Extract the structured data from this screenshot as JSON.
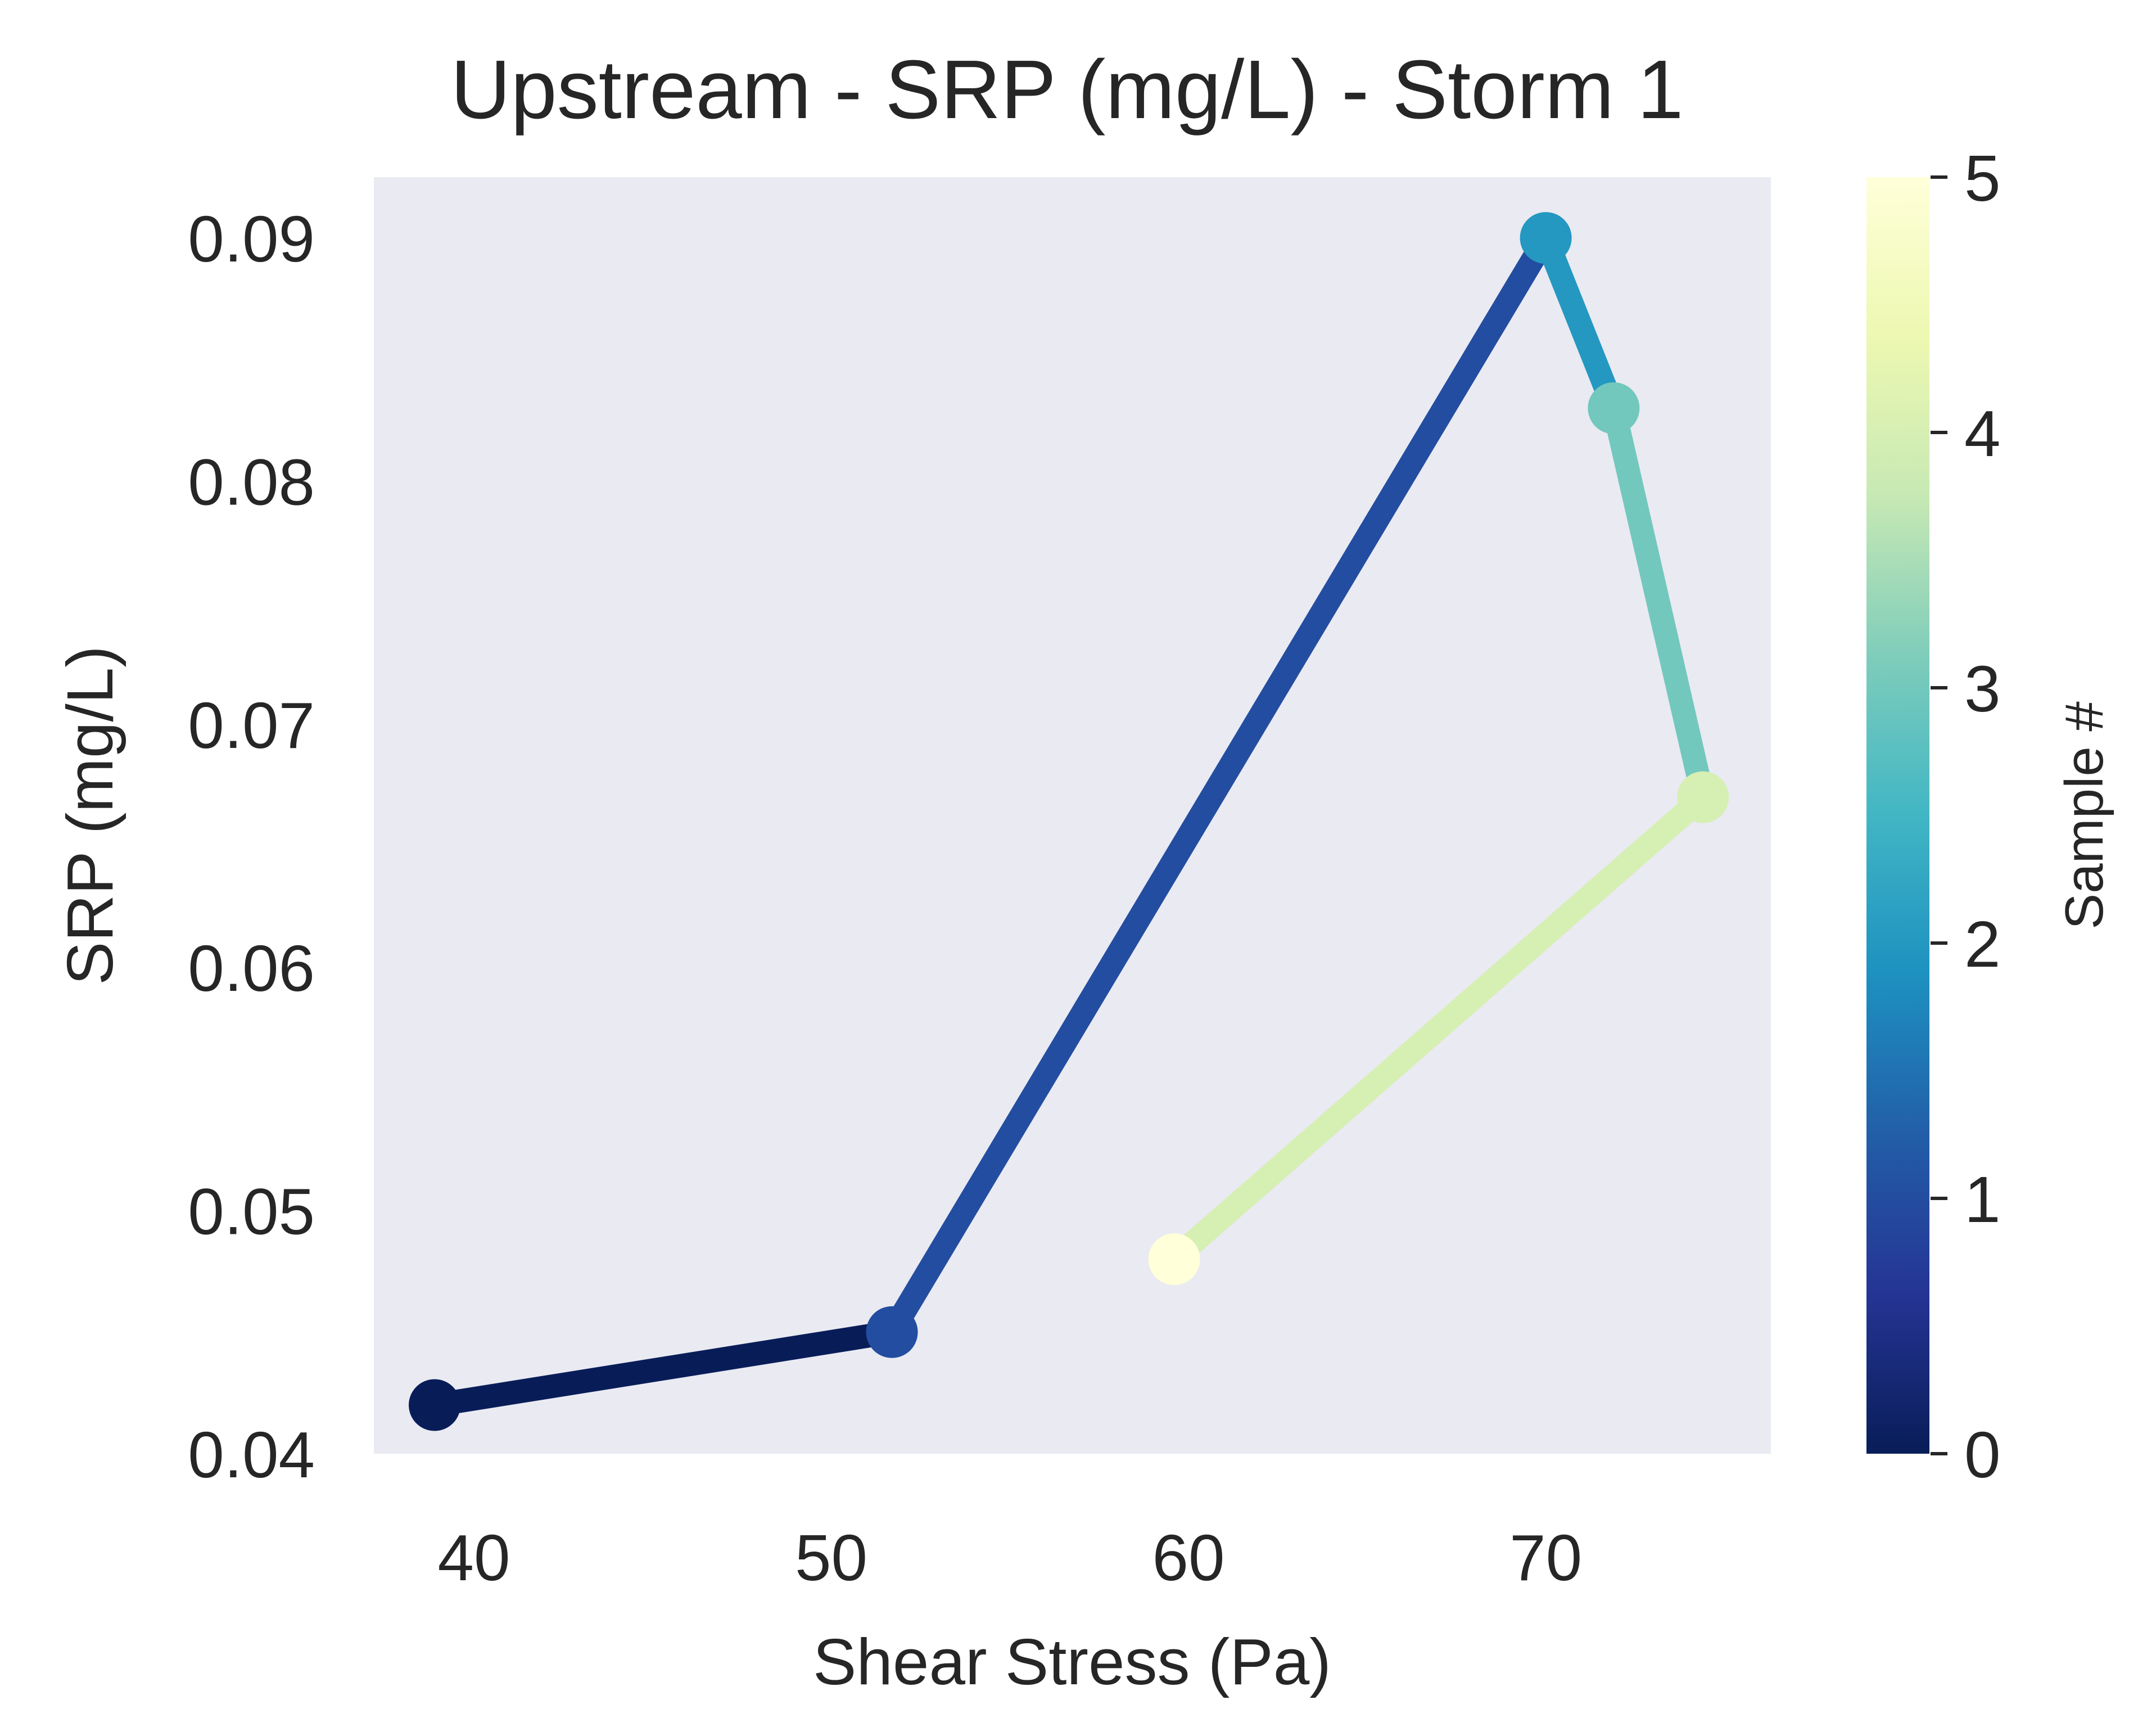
{
  "chart_data": {
    "type": "line",
    "title": "Upstream - SRP (mg/L) - Storm 1",
    "xlabel": "Shear Stress (Pa)",
    "ylabel": "SRP (mg/L)",
    "xlim": [
      37.2,
      76.3
    ],
    "ylim": [
      0.04,
      0.0925
    ],
    "x_ticks": [
      40,
      50,
      60,
      70
    ],
    "y_ticks": [
      0.04,
      0.05,
      0.06,
      0.07,
      0.08,
      0.09
    ],
    "x_tick_labels": [
      "40",
      "50",
      "60",
      "70"
    ],
    "y_tick_labels": [
      "0.04",
      "0.05",
      "0.06",
      "0.07",
      "0.08",
      "0.09"
    ],
    "grid": false,
    "background": "#eaeaf2",
    "points": [
      {
        "sample": 0,
        "x": 38.9,
        "y": 0.042
      },
      {
        "sample": 1,
        "x": 51.7,
        "y": 0.045
      },
      {
        "sample": 2,
        "x": 70.0,
        "y": 0.09
      },
      {
        "sample": 3,
        "x": 71.9,
        "y": 0.083
      },
      {
        "sample": 4,
        "x": 74.4,
        "y": 0.067
      },
      {
        "sample": 5,
        "x": 59.6,
        "y": 0.048
      }
    ],
    "colorbar": {
      "label": "Sample #",
      "colormap": "YlGnBu_r",
      "min": 0,
      "max": 5,
      "ticks": [
        0,
        1,
        2,
        3,
        4,
        5
      ],
      "tick_labels": [
        "0",
        "1",
        "2",
        "3",
        "4",
        "5"
      ],
      "stops": [
        "#081d58",
        "#253494",
        "#225ea8",
        "#1d91c0",
        "#41b6c4",
        "#7fcdbb",
        "#c7e9b4",
        "#edf8b1",
        "#ffffd9"
      ]
    }
  }
}
